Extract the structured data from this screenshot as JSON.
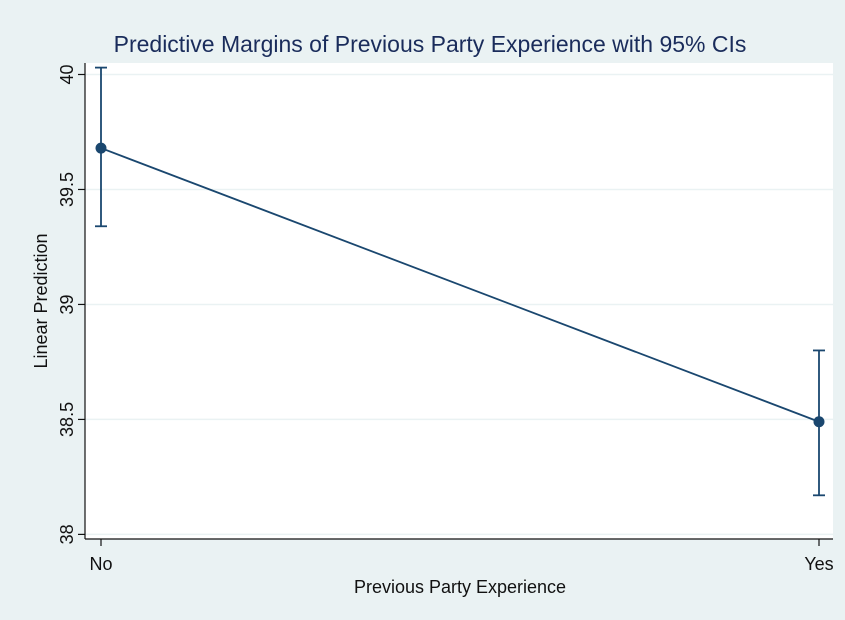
{
  "colors": {
    "outer_background": "#eaf2f3",
    "plot_background": "#ffffff",
    "grid": "#eaf2f3",
    "series": "#1a476f",
    "title": "#1a2c5b",
    "text": "#111111"
  },
  "chart_data": {
    "type": "line",
    "title": "Predictive Margins of Previous Party Experience with 95% CIs",
    "xlabel": "Previous Party Experience",
    "ylabel": "Linear Prediction",
    "categories": [
      "No",
      "Yes"
    ],
    "y_ticks": [
      38,
      38.5,
      39,
      39.5,
      40
    ],
    "y_tick_labels": [
      "38",
      "38.5",
      "39",
      "39.5",
      "40"
    ],
    "ylim": [
      37.98,
      40.05
    ],
    "grid": true,
    "legend": "none",
    "series": [
      {
        "values": [
          39.68,
          38.49
        ],
        "ci_low": [
          39.34,
          38.17
        ],
        "ci_high": [
          40.03,
          38.8
        ]
      }
    ]
  }
}
